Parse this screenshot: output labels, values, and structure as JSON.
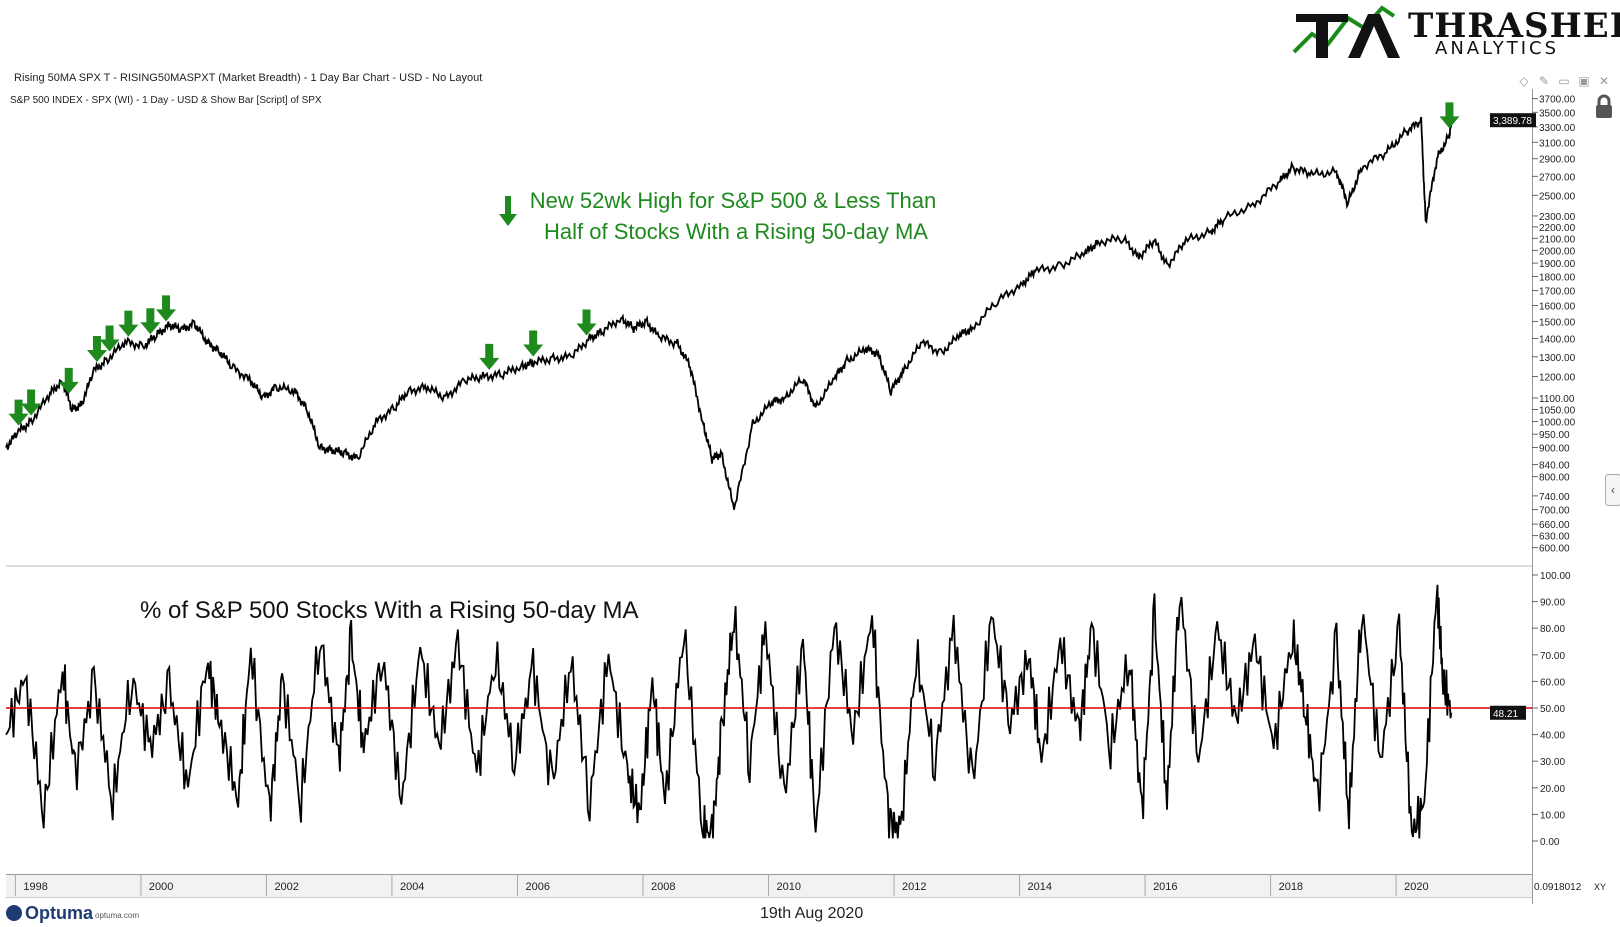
{
  "branding": {
    "logo_word": "THRASHER",
    "logo_sub": "ANALYTICS",
    "logo_mark": "TA",
    "logo_green": "#1a8a1a",
    "footer_brand": "Optuma",
    "footer_url": "optuma.com",
    "footer_date": "19th Aug 2020"
  },
  "headers": {
    "window_title": "Rising 50MA SPX T - RISING50MASPXT (Market Breadth) - 1 Day Bar Chart - USD - No Layout",
    "upper_pane": "S&P 500 INDEX - SPX (WI) - 1 Day - USD & Show Bar [Script] of SPX"
  },
  "toolbar": {
    "icons": [
      "diamond-icon",
      "pin-icon",
      "restore-icon",
      "window-icon",
      "close-icon"
    ]
  },
  "colors": {
    "price_line": "#000000",
    "breadth_line": "#000000",
    "threshold_line": "#e00000",
    "arrow": "#1e8a1e",
    "annotation": "#1e8a1e",
    "text": "#111111"
  },
  "chart_data": [
    {
      "type": "line",
      "scale": "log",
      "annotation": [
        "New 52wk High for S&P 500 & Less Than",
        "Half of Stocks With a Rising 50-day MA"
      ],
      "last_value_label": "3,389.78",
      "y_ticks": [
        600,
        630,
        660,
        700,
        740,
        800,
        840,
        900,
        950,
        1000,
        1050,
        1100,
        1200,
        1300,
        1400,
        1500,
        1600,
        1700,
        1800,
        1900,
        2000,
        2100,
        2200,
        2300,
        2500,
        2700,
        2900,
        3100,
        3300,
        3500,
        3700
      ],
      "y_tick_labels": [
        "600.00",
        "630.00",
        "660.00",
        "700.00",
        "740.00",
        "800.00",
        "840.00",
        "900.00",
        "950.00",
        "1000.00",
        "1050.00",
        "1100.00",
        "1200.00",
        "1300.00",
        "1400.00",
        "1500.00",
        "1600.00",
        "1700.00",
        "1800.00",
        "1900.00",
        "2000.00",
        "2100.00",
        "2200.00",
        "2300.00",
        "2500.00",
        "2700.00",
        "2900.00",
        "3100.00",
        "3300.00",
        "3500.00",
        "3700.00"
      ],
      "ylim": [
        580,
        3800
      ],
      "xlim": [
        1997.6,
        2020.8
      ],
      "series": [
        {
          "x": [
            1997.6,
            1997.8,
            1998.0,
            1998.3,
            1998.5,
            1998.65,
            1998.8,
            1999.0,
            1999.2,
            1999.5,
            1999.8,
            2000.0,
            2000.2,
            2000.4,
            2000.6,
            2000.8,
            2001.0,
            2001.2,
            2001.5,
            2001.7,
            2001.9,
            2002.2,
            2002.4,
            2002.6,
            2002.8,
            2003.0,
            2003.2,
            2003.5,
            2003.8,
            2004.0,
            2004.3,
            2004.6,
            2004.9,
            2005.2,
            2005.5,
            2005.8,
            2006.0,
            2006.3,
            2006.6,
            2006.9,
            2007.1,
            2007.4,
            2007.6,
            2007.8,
            2008.0,
            2008.3,
            2008.5,
            2008.7,
            2008.85,
            2009.0,
            2009.2,
            2009.5,
            2009.8,
            2010.0,
            2010.3,
            2010.5,
            2010.8,
            2011.0,
            2011.3,
            2011.5,
            2011.7,
            2011.9,
            2012.2,
            2012.5,
            2012.8,
            2013.0,
            2013.4,
            2013.8,
            2014.0,
            2014.4,
            2014.8,
            2015.0,
            2015.4,
            2015.65,
            2015.9,
            2016.1,
            2016.4,
            2016.8,
            2017.0,
            2017.5,
            2017.9,
            2018.1,
            2018.4,
            2018.8,
            2018.98,
            2019.2,
            2019.6,
            2019.9,
            2020.15,
            2020.22,
            2020.4,
            2020.6,
            2020.63
          ],
          "values": [
            900,
            960,
            1000,
            1120,
            1180,
            1050,
            1070,
            1230,
            1280,
            1380,
            1360,
            1420,
            1480,
            1450,
            1490,
            1380,
            1330,
            1250,
            1180,
            1100,
            1150,
            1130,
            1050,
            900,
            890,
            880,
            860,
            1000,
            1060,
            1130,
            1150,
            1100,
            1180,
            1200,
            1210,
            1250,
            1270,
            1290,
            1300,
            1400,
            1440,
            1520,
            1460,
            1500,
            1410,
            1370,
            1250,
            1000,
            860,
            880,
            700,
            990,
            1080,
            1100,
            1190,
            1060,
            1190,
            1280,
            1340,
            1320,
            1130,
            1230,
            1380,
            1320,
            1420,
            1460,
            1630,
            1750,
            1840,
            1880,
            1980,
            2070,
            2100,
            1950,
            2080,
            1880,
            2080,
            2160,
            2270,
            2420,
            2650,
            2800,
            2720,
            2750,
            2420,
            2800,
            2980,
            3230,
            3380,
            2250,
            2900,
            3200,
            3389.78
          ]
        }
      ]
    },
    {
      "type": "line",
      "title": "% of S&P 500 Stocks With a Rising 50-day MA",
      "threshold": 50,
      "last_value_label": "48.21",
      "y_ticks": [
        0,
        10,
        20,
        30,
        40,
        50,
        60,
        70,
        80,
        90,
        100
      ],
      "y_tick_labels": [
        "0.00",
        "10.00",
        "20.00",
        "30.00",
        "40.00",
        "50.00",
        "60.00",
        "70.00",
        "80.00",
        "90.00",
        "100.00"
      ],
      "ylim": [
        0,
        100
      ],
      "xlim": [
        1997.6,
        2020.8
      ],
      "x_tick_labels": [
        "1998",
        "2000",
        "2002",
        "2004",
        "2006",
        "2008",
        "2010",
        "2012",
        "2014",
        "2016",
        "2018",
        "2020"
      ],
      "x_ticks": [
        1997.75,
        1999.75,
        2001.75,
        2003.75,
        2005.75,
        2007.75,
        2009.75,
        2011.75,
        2013.75,
        2015.75,
        2017.75,
        2019.75
      ],
      "series": [
        {
          "x": [
            1997.6,
            1997.9,
            1998.2,
            1998.5,
            1998.7,
            1999.0,
            1999.3,
            1999.6,
            1999.9,
            2000.2,
            2000.5,
            2000.8,
            2001.0,
            2001.3,
            2001.5,
            2001.8,
            2002.0,
            2002.3,
            2002.6,
            2002.9,
            2003.1,
            2003.3,
            2003.6,
            2003.9,
            2004.2,
            2004.5,
            2004.8,
            2005.1,
            2005.4,
            2005.7,
            2006.0,
            2006.3,
            2006.6,
            2006.9,
            2007.2,
            2007.5,
            2007.7,
            2007.9,
            2008.1,
            2008.4,
            2008.7,
            2008.85,
            2009.0,
            2009.2,
            2009.45,
            2009.7,
            2010.0,
            2010.3,
            2010.5,
            2010.8,
            2011.1,
            2011.4,
            2011.65,
            2011.85,
            2012.1,
            2012.4,
            2012.7,
            2013.0,
            2013.3,
            2013.6,
            2013.9,
            2014.1,
            2014.4,
            2014.7,
            2014.9,
            2015.2,
            2015.5,
            2015.7,
            2015.9,
            2016.1,
            2016.3,
            2016.6,
            2016.9,
            2017.2,
            2017.5,
            2017.8,
            2018.1,
            2018.3,
            2018.5,
            2018.8,
            2019.0,
            2019.2,
            2019.5,
            2019.8,
            2020.0,
            2020.2,
            2020.4,
            2020.5,
            2020.63
          ],
          "values": [
            40,
            62,
            10,
            65,
            25,
            60,
            15,
            62,
            35,
            58,
            20,
            68,
            45,
            15,
            72,
            10,
            60,
            15,
            78,
            30,
            75,
            35,
            70,
            15,
            72,
            35,
            75,
            25,
            70,
            30,
            65,
            20,
            68,
            15,
            70,
            25,
            10,
            60,
            15,
            80,
            5,
            2,
            40,
            85,
            30,
            80,
            15,
            75,
            5,
            82,
            40,
            85,
            10,
            2,
            70,
            30,
            80,
            20,
            85,
            45,
            70,
            30,
            75,
            40,
            80,
            35,
            70,
            10,
            85,
            15,
            95,
            30,
            80,
            45,
            75,
            35,
            78,
            50,
            15,
            75,
            10,
            88,
            30,
            80,
            2,
            15,
            95,
            60,
            48.21
          ]
        }
      ]
    }
  ],
  "signal_arrows_years": [
    1997.8,
    1998.0,
    1998.6,
    1999.05,
    1999.25,
    1999.55,
    1999.9,
    2000.15,
    2005.3,
    2006.0,
    2006.85,
    2020.6
  ]
}
